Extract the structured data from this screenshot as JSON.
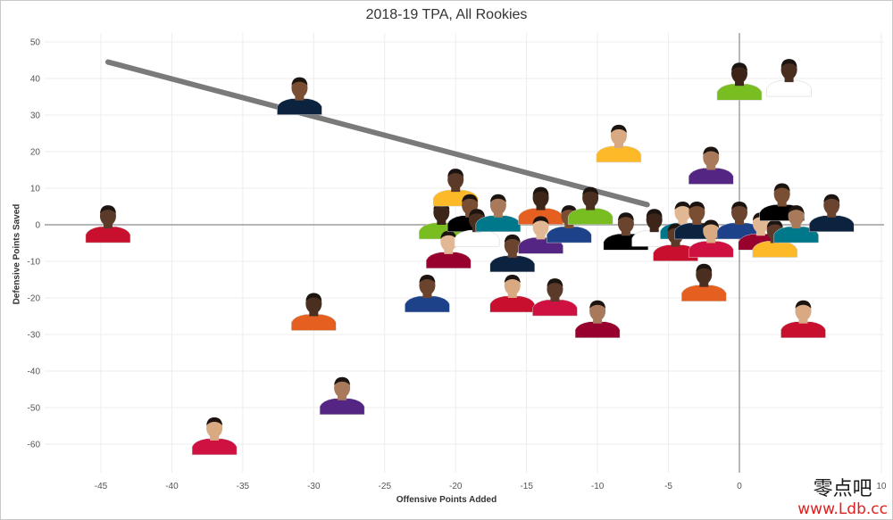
{
  "colors": {
    "trend": "#7a7a7a",
    "axis_zero": "#8a8a8a",
    "grid": "#ececec"
  },
  "chart_data": {
    "type": "scatter",
    "title": "2018-19 TPA, All Rookies",
    "xlabel": "Offensive Points Added",
    "ylabel": "Defensive Points Saved",
    "xlim": [
      -48,
      10
    ],
    "ylim": [
      -65,
      52
    ],
    "x_ticks": [
      -45,
      -40,
      -35,
      -30,
      -25,
      -20,
      -15,
      -10,
      -5,
      0,
      10
    ],
    "y_ticks": [
      50,
      40,
      30,
      20,
      10,
      0,
      -10,
      -20,
      -30,
      -40,
      -50,
      -60
    ],
    "grid": true,
    "marker": "player-headshot",
    "points": [
      {
        "x": -44.5,
        "y": -1
      },
      {
        "x": -31,
        "y": 34
      },
      {
        "x": -30,
        "y": -25
      },
      {
        "x": -28,
        "y": -48
      },
      {
        "x": -37,
        "y": -59
      },
      {
        "x": -22,
        "y": -20
      },
      {
        "x": -21,
        "y": 0
      },
      {
        "x": -20.5,
        "y": -8
      },
      {
        "x": -20,
        "y": 9
      },
      {
        "x": -19,
        "y": 2
      },
      {
        "x": -18.5,
        "y": -2
      },
      {
        "x": -17,
        "y": 2
      },
      {
        "x": -16,
        "y": -20
      },
      {
        "x": -16,
        "y": -9
      },
      {
        "x": -14,
        "y": 4
      },
      {
        "x": -14,
        "y": -4
      },
      {
        "x": -13,
        "y": -21
      },
      {
        "x": -12,
        "y": -1
      },
      {
        "x": -10.5,
        "y": 4
      },
      {
        "x": -10,
        "y": -27
      },
      {
        "x": -8.5,
        "y": 21
      },
      {
        "x": -8,
        "y": -3
      },
      {
        "x": -6,
        "y": -2
      },
      {
        "x": -4,
        "y": 0
      },
      {
        "x": -4.5,
        "y": -6
      },
      {
        "x": -3,
        "y": 0
      },
      {
        "x": -2.5,
        "y": -17
      },
      {
        "x": -2,
        "y": 15
      },
      {
        "x": -2,
        "y": -5
      },
      {
        "x": 0,
        "y": 0
      },
      {
        "x": 0,
        "y": 38
      },
      {
        "x": 1.5,
        "y": -3
      },
      {
        "x": 2.5,
        "y": -5
      },
      {
        "x": 3,
        "y": 5
      },
      {
        "x": 3.5,
        "y": 39
      },
      {
        "x": 4,
        "y": -1
      },
      {
        "x": 4.5,
        "y": -27
      },
      {
        "x": 6.5,
        "y": 2
      }
    ],
    "trend_line": {
      "x": [
        -44.5,
        -6.5
      ],
      "y": [
        44.5,
        5.5
      ]
    }
  },
  "watermark": {
    "cn": "零点吧",
    "url": "www.Ldb.cc"
  }
}
